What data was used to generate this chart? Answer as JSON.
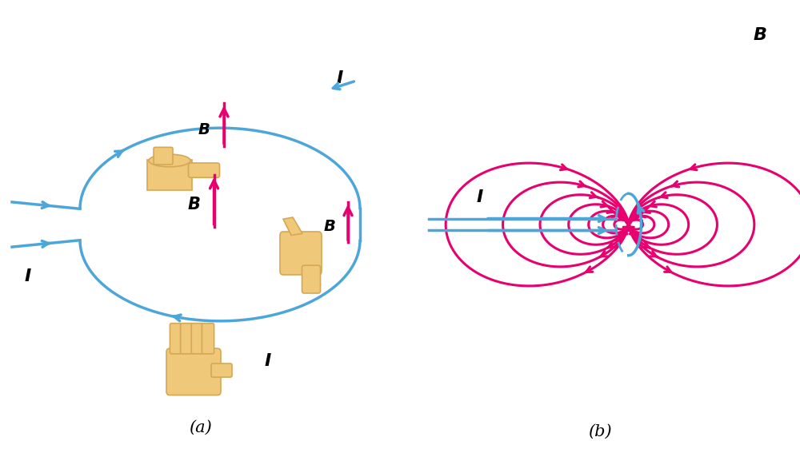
{
  "background_color": "#ffffff",
  "wire_color": "#4da6d9",
  "field_color": "#e8006e",
  "hand_color": "#f0c87a",
  "hand_edge": "#d4a855",
  "label_color": "#000000",
  "wire_lw": 2.5,
  "field_lw": 2.2,
  "panel_a_label": "(a)",
  "panel_b_label": "(b)",
  "label_I": "I",
  "label_B": "B"
}
